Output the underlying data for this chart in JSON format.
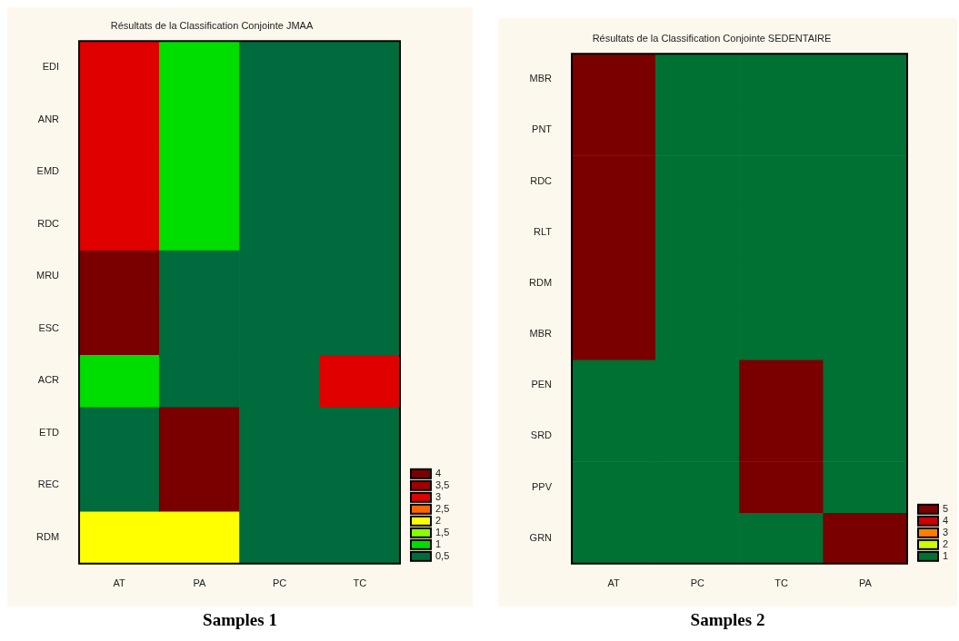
{
  "chart_data": [
    {
      "type": "heatmap",
      "title": "Résultats de la Classification Conjointe JMAA",
      "categories": [
        "AT",
        "PA",
        "PC",
        "TC"
      ],
      "y_categories": [
        "EDI",
        "ANR",
        "EMD",
        "RDC",
        "MRU",
        "ESC",
        "ACR",
        "ETD",
        "REC",
        "RDM"
      ],
      "cells": [
        [
          3,
          1,
          0.5,
          0.5
        ],
        [
          3,
          1,
          0.5,
          0.5
        ],
        [
          3,
          1,
          0.5,
          0.5
        ],
        [
          3,
          1,
          0.5,
          0.5
        ],
        [
          4,
          0.5,
          0.5,
          0.5
        ],
        [
          4,
          0.5,
          0.5,
          0.5
        ],
        [
          1,
          0.5,
          0.5,
          3
        ],
        [
          0.5,
          4,
          0.5,
          0.5
        ],
        [
          0.5,
          4,
          0.5,
          0.5
        ],
        [
          2,
          2,
          0.5,
          0.5
        ]
      ],
      "cticks": [
        {
          "value": 0.5,
          "label": "0,5"
        },
        1,
        {
          "value": 1.5,
          "label": "1,5"
        },
        2,
        {
          "value": 2.5,
          "label": "2,5"
        },
        3,
        {
          "value": 3.5,
          "label": "3,5"
        },
        4
      ],
      "colors": [
        "#006b3c",
        "#00dd00",
        "#88ff00",
        "#ffff00",
        "#ff6600",
        "#e00000",
        "#a00000",
        "#7a0000"
      ],
      "annotations": [
        "Samples 1"
      ]
    },
    {
      "type": "heatmap",
      "title": "Résultats de la Classification Conjointe SEDENTAIRE",
      "categories": [
        "AT",
        "PC",
        "TC",
        "PA"
      ],
      "y_categories": [
        "MBR",
        "PNT",
        "RDC",
        "RLT",
        "RDM",
        "MBR",
        "PEN",
        "SRD",
        "PPV",
        "GRN"
      ],
      "cells": [
        [
          5,
          1,
          1,
          1
        ],
        [
          5,
          1,
          1,
          1
        ],
        [
          5,
          1,
          1,
          1
        ],
        [
          5,
          1,
          1,
          1
        ],
        [
          5,
          1,
          1,
          1
        ],
        [
          5,
          1,
          1,
          1
        ],
        [
          1,
          1,
          5,
          1
        ],
        [
          1,
          1,
          5,
          1
        ],
        [
          1,
          1,
          5,
          1
        ],
        [
          1,
          1,
          1,
          5
        ]
      ],
      "cticks": [
        1,
        2,
        3,
        4,
        5
      ],
      "colors": [
        "#007033",
        "#ccff00",
        "#ff7f00",
        "#cc0000",
        "#7a0000"
      ],
      "annotations": [
        "Samples 2"
      ]
    }
  ]
}
